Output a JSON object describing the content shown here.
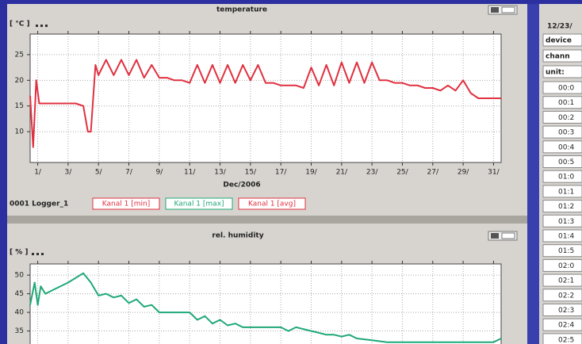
{
  "charts": [
    {
      "type": "line",
      "title": "temperature",
      "y_label": "[ °C ]",
      "x_label": "Dec/2006",
      "color": "#e0303f",
      "grid": true,
      "xlim": [
        0.5,
        31.5
      ],
      "ylim": [
        4,
        29
      ],
      "yticks": [
        10,
        15,
        20,
        25
      ],
      "xticks": [
        {
          "value": 1,
          "label": "1/"
        },
        {
          "value": 3,
          "label": "3/"
        },
        {
          "value": 5,
          "label": "5/"
        },
        {
          "value": 7,
          "label": "7/"
        },
        {
          "value": 9,
          "label": "9/"
        },
        {
          "value": 11,
          "label": "11/"
        },
        {
          "value": 13,
          "label": "13/"
        },
        {
          "value": 15,
          "label": "15/"
        },
        {
          "value": 17,
          "label": "17/"
        },
        {
          "value": 19,
          "label": "19/"
        },
        {
          "value": 21,
          "label": "21/"
        },
        {
          "value": 23,
          "label": "23/"
        },
        {
          "value": 25,
          "label": "25/"
        },
        {
          "value": 27,
          "label": "27/"
        },
        {
          "value": 29,
          "label": "29/"
        },
        {
          "value": 31,
          "label": "31/"
        }
      ],
      "x": [
        0.5,
        0.7,
        0.9,
        1.1,
        1.5,
        2,
        2.5,
        3,
        3.5,
        4,
        4.3,
        4.5,
        4.8,
        5,
        5.5,
        6,
        6.5,
        7,
        7.5,
        8,
        8.5,
        9,
        9.5,
        10,
        10.5,
        11,
        11.5,
        12,
        12.5,
        13,
        13.5,
        14,
        14.5,
        15,
        15.5,
        16,
        16.5,
        17,
        17.5,
        18,
        18.5,
        19,
        19.5,
        20,
        20.5,
        21,
        21.5,
        22,
        22.5,
        23,
        23.5,
        24,
        24.5,
        25,
        25.5,
        26,
        26.5,
        27,
        27.5,
        28,
        28.5,
        29,
        29.5,
        30,
        30.5,
        31,
        31.5
      ],
      "values": [
        17,
        7,
        20,
        15.5,
        15.5,
        15.5,
        15.5,
        15.5,
        15.5,
        15,
        10,
        10,
        23,
        21,
        24,
        21,
        24,
        21,
        24,
        20.5,
        23,
        20.5,
        20.5,
        20,
        20,
        19.5,
        23,
        19.5,
        23,
        19.5,
        23,
        19.5,
        23,
        20,
        23,
        19.5,
        19.5,
        19,
        19,
        19,
        18.5,
        22.5,
        19,
        23,
        19,
        23.5,
        19.5,
        23.5,
        19.5,
        23.5,
        20,
        20,
        19.5,
        19.5,
        19,
        19,
        18.5,
        18.5,
        18,
        19,
        18,
        20,
        17.5,
        16.5,
        16.5,
        16.5,
        16.5
      ]
    },
    {
      "type": "line",
      "title": "rel. humidity",
      "y_label": "[ % ]",
      "color": "#1fa877",
      "grid": true,
      "xlim": [
        0.5,
        31.5
      ],
      "ylim": [
        31.5,
        53
      ],
      "yticks": [
        35,
        40,
        45,
        50
      ],
      "x": [
        0.5,
        0.8,
        1,
        1.2,
        1.5,
        2,
        3,
        4,
        4.5,
        5,
        5.5,
        6,
        6.5,
        7,
        7.5,
        8,
        8.5,
        9,
        10,
        11,
        11.5,
        12,
        12.5,
        13,
        13.5,
        14,
        14.5,
        15,
        16,
        17,
        17.5,
        18,
        19,
        19.5,
        20,
        20.5,
        21,
        21.5,
        22,
        23,
        24,
        25,
        26,
        27,
        28,
        29,
        30,
        31,
        31.5
      ],
      "values": [
        42,
        48,
        42,
        47,
        45,
        46,
        48,
        50.5,
        48,
        44.5,
        45,
        44,
        44.5,
        42.5,
        43.5,
        41.5,
        42,
        40,
        40,
        40,
        38,
        39,
        37,
        38,
        36.5,
        37,
        36,
        36,
        36,
        36,
        35,
        36,
        35,
        34.5,
        34,
        34,
        33.5,
        34,
        33,
        32.5,
        32,
        32,
        32,
        32,
        32,
        32,
        32,
        32,
        33
      ]
    }
  ],
  "legend": {
    "logger": "0001 Logger_1",
    "entries": [
      {
        "name": "Kanal 1 [min]",
        "color": "#e0303f"
      },
      {
        "name": "Kanal 1 [max]",
        "color": "#1fa877"
      },
      {
        "name": "Kanal 1 [avg]",
        "color": "#e0303f"
      }
    ]
  },
  "table": {
    "header": "12/23/",
    "row_labels": [
      "device",
      "chann",
      "unit:"
    ],
    "times": [
      "00:0",
      "00:1",
      "00:2",
      "00:3",
      "00:4",
      "00:5",
      "01:0",
      "01:1",
      "01:2",
      "01:3",
      "01:4",
      "01:5",
      "02:0",
      "02:1",
      "02:2",
      "02:3",
      "02:4",
      "02:5"
    ]
  }
}
